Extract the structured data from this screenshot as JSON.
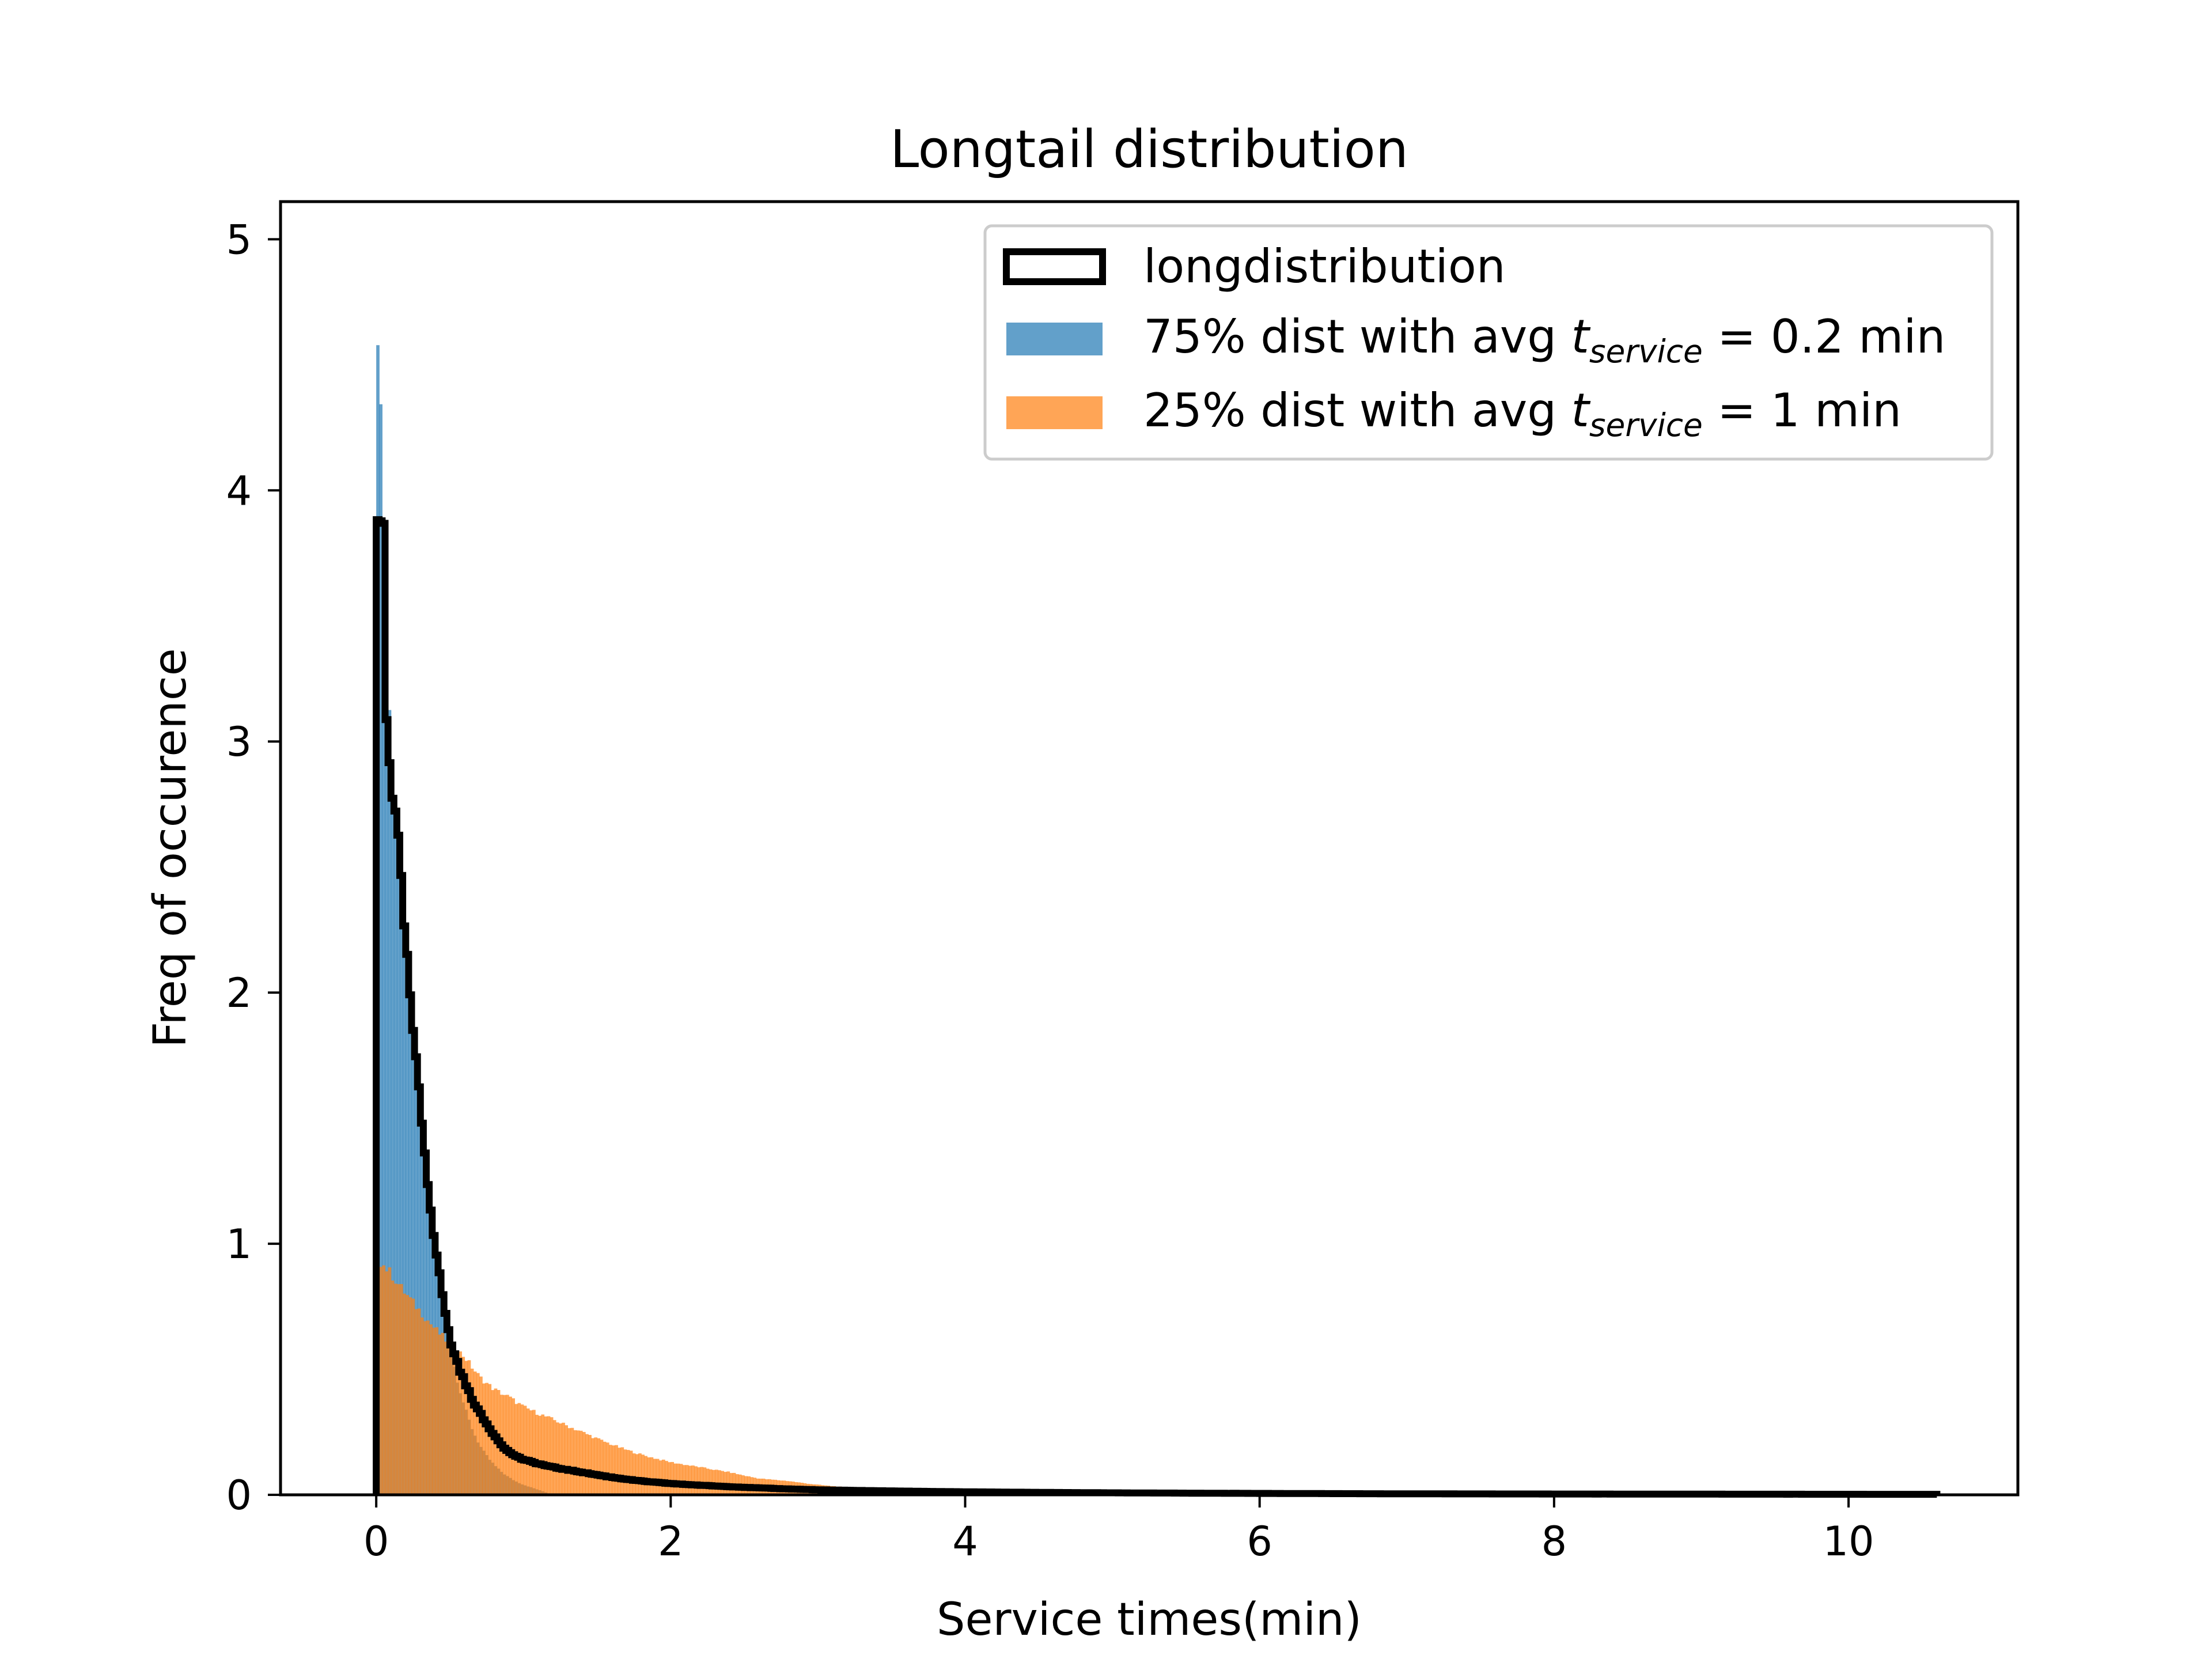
{
  "chart_data": {
    "type": "histogram",
    "title": "Longtail distribution",
    "xlabel": "Service times(min)",
    "ylabel": "Freq of occurence",
    "xlim": [
      -0.65,
      11.15
    ],
    "ylim": [
      0,
      5.15
    ],
    "xticks": [
      0,
      2,
      4,
      6,
      8,
      10
    ],
    "yticks": [
      0,
      1,
      2,
      3,
      4,
      5
    ],
    "grid": false,
    "legend_position": "top-right",
    "legend": [
      {
        "label": "longdistribution",
        "style": "step outline"
      },
      {
        "prefix": "75% dist with avg ",
        "var": "t",
        "sub": "service",
        "suffix": " = 0.2 min"
      },
      {
        "prefix": "25% dist with avg ",
        "var": "t",
        "sub": "service",
        "suffix": " = 1 min"
      }
    ],
    "series": [
      {
        "name": "75% dist with avg t_service = 0.2 min",
        "kind": "filled histogram",
        "color": "#1f77b4",
        "opacity": 0.7,
        "x_range": [
          0,
          1.2
        ],
        "points": [
          [
            0.0,
            4.9
          ],
          [
            0.02,
            4.5
          ],
          [
            0.05,
            3.8
          ],
          [
            0.1,
            3.0
          ],
          [
            0.15,
            2.55
          ],
          [
            0.2,
            2.1
          ],
          [
            0.3,
            1.55
          ],
          [
            0.4,
            1.0
          ],
          [
            0.5,
            0.6
          ],
          [
            0.6,
            0.35
          ],
          [
            0.7,
            0.2
          ],
          [
            0.8,
            0.12
          ],
          [
            0.9,
            0.07
          ],
          [
            1.0,
            0.04
          ],
          [
            1.2,
            0.0
          ]
        ]
      },
      {
        "name": "25% dist with avg t_service = 1 min",
        "kind": "filled histogram",
        "color": "#ff7f0e",
        "opacity": 0.7,
        "x_range": [
          0,
          4.2
        ],
        "points": [
          [
            0.0,
            0.95
          ],
          [
            0.1,
            0.88
          ],
          [
            0.2,
            0.8
          ],
          [
            0.3,
            0.73
          ],
          [
            0.4,
            0.66
          ],
          [
            0.5,
            0.6
          ],
          [
            0.6,
            0.55
          ],
          [
            0.7,
            0.47
          ],
          [
            0.8,
            0.42
          ],
          [
            0.9,
            0.39
          ],
          [
            1.0,
            0.35
          ],
          [
            1.2,
            0.3
          ],
          [
            1.4,
            0.25
          ],
          [
            1.6,
            0.2
          ],
          [
            1.8,
            0.16
          ],
          [
            2.0,
            0.13
          ],
          [
            2.2,
            0.11
          ],
          [
            2.4,
            0.09
          ],
          [
            2.6,
            0.065
          ],
          [
            2.8,
            0.055
          ],
          [
            3.0,
            0.04
          ],
          [
            3.2,
            0.03
          ],
          [
            3.4,
            0.02
          ],
          [
            3.6,
            0.015
          ],
          [
            3.8,
            0.01
          ],
          [
            4.2,
            0.0
          ]
        ]
      },
      {
        "name": "longdistribution",
        "kind": "step outline",
        "color": "#000000",
        "x_range": [
          0,
          10.6
        ],
        "points": [
          [
            0.0,
            3.87
          ],
          [
            0.05,
            3.3
          ],
          [
            0.1,
            2.85
          ],
          [
            0.15,
            2.6
          ],
          [
            0.2,
            2.2
          ],
          [
            0.25,
            1.85
          ],
          [
            0.3,
            1.55
          ],
          [
            0.35,
            1.25
          ],
          [
            0.4,
            1.0
          ],
          [
            0.45,
            0.8
          ],
          [
            0.5,
            0.62
          ],
          [
            0.6,
            0.45
          ],
          [
            0.7,
            0.33
          ],
          [
            0.8,
            0.24
          ],
          [
            0.9,
            0.17
          ],
          [
            1.0,
            0.14
          ],
          [
            1.2,
            0.11
          ],
          [
            1.4,
            0.09
          ],
          [
            1.6,
            0.07
          ],
          [
            1.8,
            0.055
          ],
          [
            2.0,
            0.045
          ],
          [
            2.5,
            0.03
          ],
          [
            3.0,
            0.02
          ],
          [
            4.0,
            0.012
          ],
          [
            5.0,
            0.008
          ],
          [
            7.0,
            0.004
          ],
          [
            10.6,
            0.002
          ]
        ]
      }
    ]
  }
}
